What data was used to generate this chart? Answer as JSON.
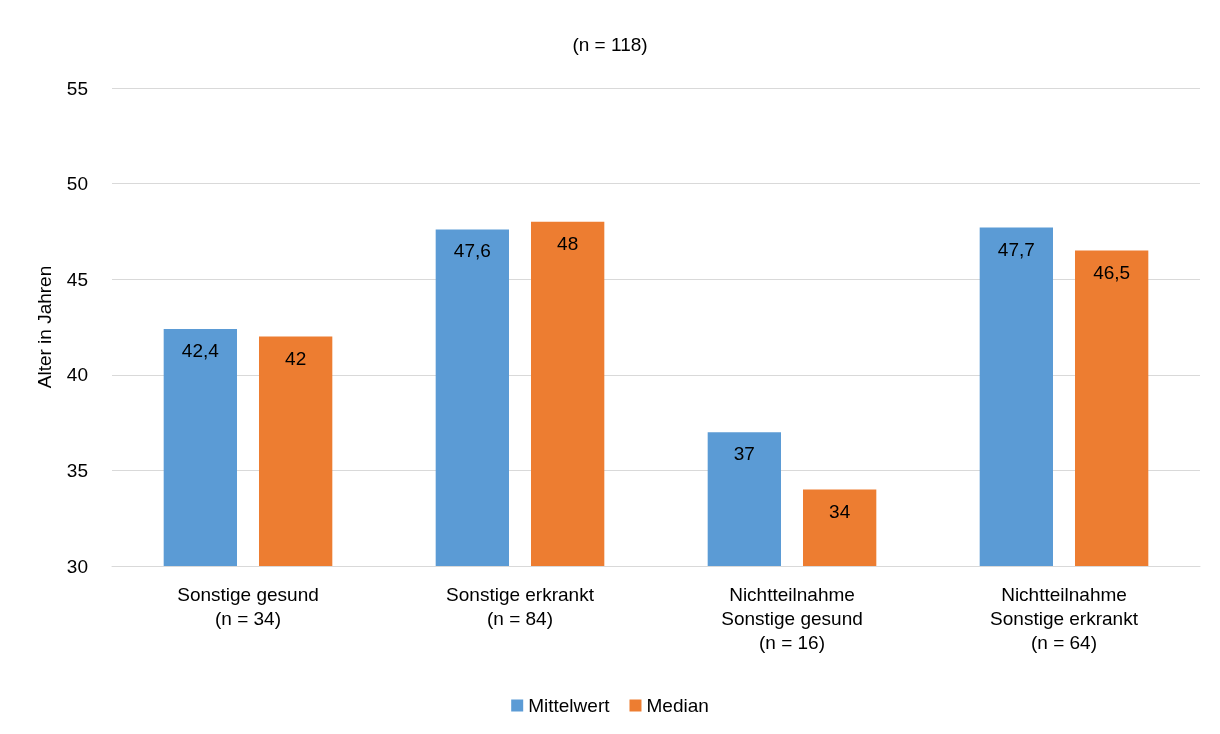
{
  "chart_data": {
    "type": "bar",
    "title": "(n = 118)",
    "ylabel": "Alter in Jahren",
    "categories": [
      "Sonstige gesund\n(n = 34)",
      "Sonstige erkrankt\n(n = 84)",
      "Nichtteilnahme\nSonstige gesund\n(n = 16)",
      "Nichtteilnahme\nSonstige erkrankt\n(n = 64)"
    ],
    "series": [
      {
        "name": "Mittelwert",
        "color": "#5b9bd5",
        "values": [
          42.4,
          47.6,
          37,
          47.7
        ],
        "value_labels": [
          "42,4",
          "47,6",
          "37",
          "47,7"
        ]
      },
      {
        "name": "Median",
        "color": "#ed7d31",
        "values": [
          42,
          48,
          34,
          46.5
        ],
        "value_labels": [
          "42",
          "48",
          "34",
          "46,5"
        ]
      }
    ],
    "ylim": [
      30,
      55
    ],
    "yticks": [
      30,
      35,
      40,
      45,
      50,
      55
    ],
    "grid": "y",
    "legend": "bottom"
  }
}
